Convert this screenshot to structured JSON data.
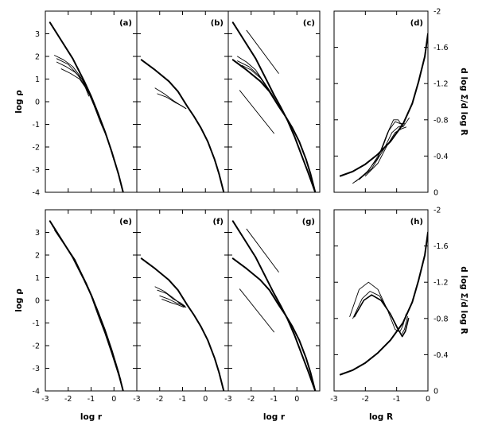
{
  "chart_data": [
    {
      "panel": "a",
      "type": "line",
      "tag": "(a)",
      "xlim": [
        -3,
        1
      ],
      "ylim": [
        -4,
        4
      ],
      "xticks": [],
      "yticks": [
        "-4",
        "-3",
        "-2",
        "-1",
        "0",
        "1",
        "2",
        "3"
      ],
      "xlabel": "",
      "ylabel": "log ρ",
      "series": [
        {
          "x": [
            -2.8,
            -2.3,
            -1.8,
            -1.3,
            -1.0,
            -0.7,
            -0.4,
            -0.1,
            0.2,
            0.4
          ],
          "y": [
            3.5,
            2.7,
            1.9,
            0.9,
            0.25,
            -0.5,
            -1.3,
            -2.2,
            -3.2,
            -4.0
          ],
          "width": 2
        },
        {
          "x": [
            -2.6,
            -2.2,
            -1.8,
            -1.5,
            -1.2,
            -0.9,
            -0.6,
            -0.3,
            0.0
          ],
          "y": [
            2.05,
            1.85,
            1.55,
            1.15,
            0.65,
            -0.1,
            -0.9,
            -1.6,
            -2.6
          ],
          "width": 0.9
        },
        {
          "x": [
            -2.5,
            -2.1,
            -1.7,
            -1.4,
            -1.2,
            -0.9
          ],
          "y": [
            1.75,
            1.55,
            1.3,
            1.0,
            0.6,
            -0.1
          ],
          "width": 0.9
        },
        {
          "x": [
            -2.3,
            -1.9,
            -1.5,
            -1.2,
            -1.0
          ],
          "y": [
            1.45,
            1.25,
            1.0,
            0.55,
            0.15
          ],
          "width": 0.9
        },
        {
          "x": [
            -2.5,
            -2.0,
            -1.6,
            -1.3,
            -1.1
          ],
          "y": [
            1.9,
            1.65,
            1.2,
            0.75,
            0.25
          ],
          "width": 0.9
        }
      ]
    },
    {
      "panel": "b",
      "type": "line",
      "tag": "(b)",
      "xlim": [
        -3,
        1
      ],
      "ylim": [
        -4,
        4
      ],
      "xticks": [],
      "yticks": [],
      "xlabel": "",
      "ylabel": "",
      "series": [
        {
          "x": [
            -2.8,
            -2.2,
            -1.6,
            -1.2,
            -0.8,
            -0.5,
            -0.2,
            0.1,
            0.4,
            0.6,
            0.8
          ],
          "y": [
            1.85,
            1.4,
            0.9,
            0.45,
            -0.2,
            -0.65,
            -1.15,
            -1.75,
            -2.55,
            -3.2,
            -4.0
          ],
          "width": 2
        },
        {
          "x": [
            -2.2,
            -1.8,
            -1.4,
            -1.1,
            -0.85
          ],
          "y": [
            0.6,
            0.35,
            0.05,
            -0.15,
            -0.3
          ],
          "width": 0.9
        },
        {
          "x": [
            -2.1,
            -1.7,
            -1.3,
            -1.0,
            -0.85
          ],
          "y": [
            0.35,
            0.2,
            -0.05,
            -0.2,
            -0.3
          ],
          "width": 0.9
        }
      ]
    },
    {
      "panel": "c",
      "type": "line",
      "tag": "(c)",
      "xlim": [
        -3,
        1
      ],
      "ylim": [
        -4,
        4
      ],
      "xticks": [],
      "yticks": [],
      "xlabel": "",
      "ylabel": "",
      "series": [
        {
          "x": [
            -2.8,
            -2.3,
            -1.8,
            -1.3,
            -1.0,
            -0.7,
            -0.4,
            -0.1,
            0.2,
            0.5,
            0.8
          ],
          "y": [
            3.5,
            2.7,
            1.9,
            0.9,
            0.3,
            -0.25,
            -0.85,
            -1.55,
            -2.35,
            -3.15,
            -4.0
          ],
          "width": 2
        },
        {
          "x": [
            -2.8,
            -2.2,
            -1.6,
            -1.2,
            -0.8,
            -0.5,
            -0.2,
            0.1,
            0.4,
            0.6,
            0.8
          ],
          "y": [
            1.85,
            1.4,
            0.9,
            0.45,
            -0.2,
            -0.65,
            -1.15,
            -1.75,
            -2.55,
            -3.2,
            -4.0
          ],
          "width": 2
        },
        {
          "x": [
            -2.6,
            -2.2,
            -1.8,
            -1.5,
            -1.2,
            -0.9
          ],
          "y": [
            2.0,
            1.75,
            1.4,
            0.95,
            0.5,
            -0.05
          ],
          "width": 0.9
        },
        {
          "x": [
            -2.6,
            -2.1,
            -1.7,
            -1.4,
            -1.1,
            -0.9
          ],
          "y": [
            1.8,
            1.55,
            1.2,
            0.8,
            0.35,
            0.0
          ],
          "width": 0.9
        },
        {
          "x": [
            -2.4,
            -2.0,
            -1.6,
            -1.3,
            -1.0
          ],
          "y": [
            1.6,
            1.4,
            1.05,
            0.6,
            0.15
          ],
          "width": 0.9
        },
        {
          "x": [
            -2.2,
            -0.8
          ],
          "y": [
            3.15,
            1.25
          ],
          "width": 0.9
        },
        {
          "x": [
            -2.5,
            -1.0
          ],
          "y": [
            0.5,
            -1.4
          ],
          "width": 0.9
        }
      ]
    },
    {
      "panel": "d",
      "type": "line",
      "tag": "(d)",
      "xlim": [
        -3,
        0
      ],
      "ylim": [
        0,
        -2
      ],
      "xticks": [],
      "yticks": [
        "0",
        "-0.4",
        "-0.8",
        "-1.2",
        "-1.6",
        "-2"
      ],
      "xlabel": "",
      "ylabel": "d log Σ/d log R",
      "series": [
        {
          "x": [
            -2.8,
            -2.4,
            -2.0,
            -1.6,
            -1.2,
            -0.8,
            -0.5,
            -0.3,
            -0.1,
            0.0
          ],
          "y": [
            -0.18,
            -0.23,
            -0.31,
            -0.42,
            -0.56,
            -0.75,
            -0.98,
            -1.22,
            -1.5,
            -1.75
          ],
          "width": 2
        },
        {
          "x": [
            -2.4,
            -2.0,
            -1.6,
            -1.3,
            -1.1,
            -0.95,
            -0.8,
            -0.6
          ],
          "y": [
            -0.1,
            -0.2,
            -0.38,
            -0.65,
            -0.8,
            -0.8,
            -0.72,
            -0.82
          ],
          "width": 0.9
        },
        {
          "x": [
            -2.3,
            -1.9,
            -1.5,
            -1.25,
            -1.05,
            -0.9,
            -0.75
          ],
          "y": [
            -0.12,
            -0.24,
            -0.45,
            -0.68,
            -0.78,
            -0.76,
            -0.76
          ],
          "width": 0.9
        },
        {
          "x": [
            -2.2,
            -1.8,
            -1.4,
            -1.15,
            -0.95,
            -0.8
          ],
          "y": [
            -0.14,
            -0.26,
            -0.48,
            -0.66,
            -0.72,
            -0.74
          ],
          "width": 0.9
        },
        {
          "x": [
            -2.0,
            -1.6,
            -1.3,
            -1.05,
            -0.85,
            -0.7
          ],
          "y": [
            -0.18,
            -0.32,
            -0.52,
            -0.66,
            -0.7,
            -0.72
          ],
          "width": 0.9
        }
      ]
    },
    {
      "panel": "e",
      "type": "line",
      "tag": "(e)",
      "xlim": [
        -3,
        1
      ],
      "ylim": [
        -4,
        4
      ],
      "xticks": [
        "-3",
        "-2",
        "-1",
        "0"
      ],
      "yticks": [
        "-4",
        "-3",
        "-2",
        "-1",
        "0",
        "1",
        "2",
        "3"
      ],
      "xlabel": "log r",
      "ylabel": "log ρ",
      "series": [
        {
          "x": [
            -2.8,
            -2.3,
            -1.8,
            -1.3,
            -1.0,
            -0.7,
            -0.4,
            -0.1,
            0.2,
            0.4
          ],
          "y": [
            3.5,
            2.7,
            1.9,
            0.9,
            0.25,
            -0.5,
            -1.3,
            -2.2,
            -3.2,
            -4.0
          ],
          "width": 2
        },
        {
          "x": [
            -2.7,
            -2.2,
            -1.7,
            -1.3,
            -1.0,
            -0.7,
            -0.4,
            -0.1,
            0.2,
            0.4
          ],
          "y": [
            3.3,
            2.55,
            1.8,
            0.95,
            0.2,
            -0.65,
            -1.45,
            -2.35,
            -3.3,
            -4.0
          ],
          "width": 0.9
        },
        {
          "x": [
            -2.6,
            -2.1,
            -1.6,
            -1.2,
            -0.9,
            -0.6,
            -0.3,
            0.0,
            0.3
          ],
          "y": [
            3.1,
            2.35,
            1.55,
            0.75,
            0.05,
            -0.85,
            -1.65,
            -2.6,
            -3.5
          ],
          "width": 0.9
        }
      ]
    },
    {
      "panel": "f",
      "type": "line",
      "tag": "(f)",
      "xlim": [
        -3,
        1
      ],
      "ylim": [
        -4,
        4
      ],
      "xticks": [
        "-3",
        "-2",
        "-1",
        "0"
      ],
      "yticks": [],
      "xlabel": "",
      "ylabel": "",
      "series": [
        {
          "x": [
            -2.8,
            -2.2,
            -1.6,
            -1.2,
            -0.8,
            -0.5,
            -0.2,
            0.1,
            0.4,
            0.6,
            0.8
          ],
          "y": [
            1.85,
            1.4,
            0.9,
            0.45,
            -0.2,
            -0.65,
            -1.15,
            -1.75,
            -2.55,
            -3.2,
            -4.0
          ],
          "width": 2
        },
        {
          "x": [
            -2.2,
            -1.8,
            -1.4,
            -1.1,
            -0.85
          ],
          "y": [
            0.6,
            0.4,
            0.1,
            -0.15,
            -0.3
          ],
          "width": 0.9
        },
        {
          "x": [
            -2.1,
            -1.7,
            -1.4,
            -1.1,
            -0.9
          ],
          "y": [
            0.45,
            0.3,
            0.05,
            -0.1,
            -0.25
          ],
          "width": 0.9
        },
        {
          "x": [
            -2.0,
            -1.6,
            -1.3,
            -1.05,
            -0.9
          ],
          "y": [
            0.2,
            0.05,
            -0.1,
            -0.2,
            -0.3
          ],
          "width": 0.9
        },
        {
          "x": [
            -1.9,
            -1.5,
            -1.2,
            -0.95
          ],
          "y": [
            0.05,
            -0.1,
            -0.2,
            -0.3
          ],
          "width": 0.9
        }
      ]
    },
    {
      "panel": "g",
      "type": "line",
      "tag": "(g)",
      "xlim": [
        -3,
        1
      ],
      "ylim": [
        -4,
        4
      ],
      "xticks": [
        "-3",
        "-2",
        "-1",
        "0"
      ],
      "yticks": [],
      "xlabel": "log r",
      "ylabel": "",
      "series": [
        {
          "x": [
            -2.8,
            -2.3,
            -1.8,
            -1.3,
            -1.0,
            -0.7,
            -0.4,
            -0.1,
            0.2,
            0.5,
            0.8
          ],
          "y": [
            3.5,
            2.7,
            1.9,
            0.9,
            0.3,
            -0.25,
            -0.85,
            -1.55,
            -2.35,
            -3.15,
            -4.0
          ],
          "width": 2
        },
        {
          "x": [
            -2.8,
            -2.2,
            -1.6,
            -1.2,
            -0.8,
            -0.5,
            -0.2,
            0.1,
            0.4,
            0.6,
            0.8
          ],
          "y": [
            1.85,
            1.4,
            0.9,
            0.45,
            -0.2,
            -0.65,
            -1.15,
            -1.75,
            -2.55,
            -3.2,
            -4.0
          ],
          "width": 2
        },
        {
          "x": [
            -2.2,
            -0.8
          ],
          "y": [
            3.15,
            1.25
          ],
          "width": 0.9
        },
        {
          "x": [
            -2.5,
            -1.0
          ],
          "y": [
            0.5,
            -1.4
          ],
          "width": 0.9
        }
      ]
    },
    {
      "panel": "h",
      "type": "line",
      "tag": "(h)",
      "xlim": [
        -3,
        0
      ],
      "ylim": [
        0,
        -2
      ],
      "xticks": [
        "-3",
        "-2",
        "-1",
        "0"
      ],
      "yticks": [
        "0",
        "-0.4",
        "-0.8",
        "-1.2",
        "-1.6",
        "-2"
      ],
      "xlabel": "log R",
      "ylabel": "d log Σ/d log R",
      "series": [
        {
          "x": [
            -2.8,
            -2.4,
            -2.0,
            -1.6,
            -1.2,
            -0.8,
            -0.5,
            -0.3,
            -0.1,
            0.0
          ],
          "y": [
            -0.18,
            -0.23,
            -0.31,
            -0.42,
            -0.56,
            -0.75,
            -0.98,
            -1.22,
            -1.5,
            -1.75
          ],
          "width": 2
        },
        {
          "x": [
            -2.5,
            -2.2,
            -1.9,
            -1.6,
            -1.3,
            -1.05,
            -0.9,
            -0.8,
            -0.7
          ],
          "y": [
            -0.82,
            -1.12,
            -1.2,
            -1.12,
            -0.9,
            -0.68,
            -0.65,
            -0.72,
            -0.85
          ],
          "width": 0.9
        },
        {
          "x": [
            -2.4,
            -2.1,
            -1.85,
            -1.55,
            -1.25,
            -1.0,
            -0.85,
            -0.75,
            -0.65
          ],
          "y": [
            -0.8,
            -1.02,
            -1.1,
            -1.05,
            -0.88,
            -0.7,
            -0.62,
            -0.68,
            -0.82
          ],
          "width": 0.9
        },
        {
          "x": [
            -2.35,
            -2.05,
            -1.8,
            -1.5,
            -1.2,
            -0.95,
            -0.82,
            -0.72,
            -0.62
          ],
          "y": [
            -0.82,
            -1.0,
            -1.06,
            -1.0,
            -0.85,
            -0.68,
            -0.6,
            -0.66,
            -0.8
          ],
          "width": 1.6
        }
      ]
    }
  ]
}
